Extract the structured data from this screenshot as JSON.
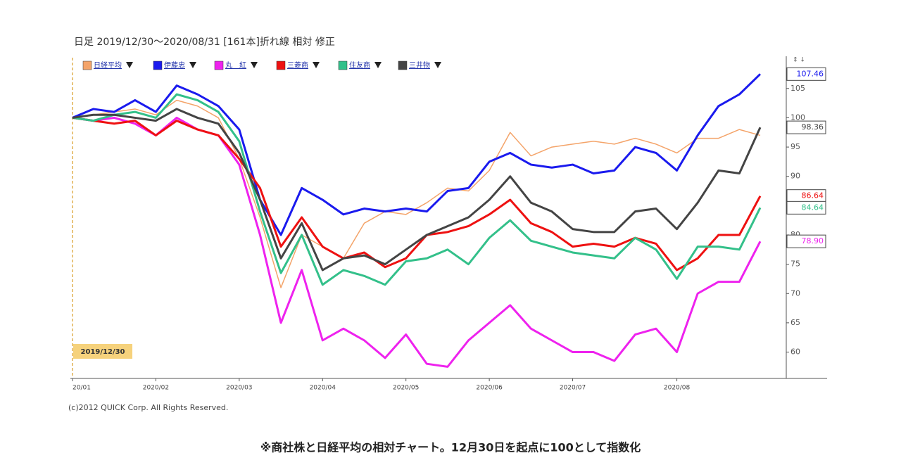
{
  "chart_data": {
    "type": "line",
    "title": "日足 2019/12/30～2020/08/31 [161本]折れ線 相対 修正",
    "start_label": "2019/12/30",
    "copyright": "(c)2012 QUICK Corp. All Rights Reserved.",
    "caption": "※商社株と日経平均の相対チャート。12月30日を起点に100として指数化",
    "categories": [
      "20/01",
      null,
      null,
      null,
      "2020/02",
      null,
      null,
      null,
      "2020/03",
      null,
      null,
      null,
      "2020/04",
      null,
      null,
      null,
      "2020/05",
      null,
      null,
      null,
      "2020/06",
      null,
      null,
      null,
      "2020/07",
      null,
      null,
      null,
      null,
      "2020/08",
      null,
      null,
      null,
      null
    ],
    "ylim": [
      55.5,
      110.5
    ],
    "yticks": [
      60,
      65,
      70,
      75,
      80,
      85,
      90,
      95,
      100,
      105
    ],
    "series": [
      {
        "name": "日経平均",
        "color": "#f4a46a",
        "values": [
          100,
          100.5,
          101,
          101.5,
          100.5,
          103,
          102,
          100,
          93,
          83,
          71,
          80,
          78,
          76,
          82,
          84,
          83.5,
          85.5,
          88,
          87.5,
          91,
          97.5,
          93.5,
          95,
          95.5,
          96,
          95.5,
          96.5,
          95.5,
          94,
          96.5,
          96.5,
          98,
          97
        ]
      },
      {
        "name": "伊藤忠",
        "color": "#1a1aee",
        "last_label": "107.46",
        "values": [
          100,
          101.5,
          101,
          103,
          101,
          105.5,
          104,
          102,
          98,
          86,
          80,
          88,
          86,
          83.5,
          84.5,
          84,
          84.5,
          84,
          87.5,
          88,
          92.5,
          94,
          92,
          91.5,
          92,
          90.5,
          91,
          95,
          94,
          91,
          97,
          102,
          104,
          107.46
        ]
      },
      {
        "name": "丸　紅",
        "color": "#ee22ee",
        "last_label": "78.90",
        "values": [
          100,
          99.5,
          100,
          99,
          97,
          100,
          98,
          97,
          92,
          80,
          65,
          74,
          62,
          64,
          62,
          59,
          63,
          58,
          57.5,
          62,
          65,
          68,
          64,
          62,
          60,
          60,
          58.5,
          63,
          64,
          60,
          70,
          72,
          72,
          78.9
        ]
      },
      {
        "name": "三菱商",
        "color": "#ee1111",
        "last_label": "86.64",
        "values": [
          100,
          99.5,
          99,
          99.5,
          97,
          99.5,
          98,
          97,
          93,
          88,
          78,
          83,
          78,
          76,
          77,
          74.5,
          76,
          80,
          80.5,
          81.5,
          83.5,
          86,
          82,
          80.5,
          78,
          78.5,
          78,
          79.5,
          78.5,
          74,
          76,
          80,
          80,
          86.64
        ]
      },
      {
        "name": "住友商",
        "color": "#33c08a",
        "last_label": "84.64",
        "values": [
          100,
          99.5,
          100.5,
          101,
          100,
          104,
          103,
          101,
          96,
          84,
          73.5,
          80,
          71.5,
          74,
          73,
          71.5,
          75.5,
          76,
          77.5,
          75,
          79.5,
          82.5,
          79,
          78,
          77,
          76.5,
          76,
          79.5,
          77.5,
          72.5,
          78,
          78,
          77.5,
          84.64
        ]
      },
      {
        "name": "三井物",
        "color": "#444444",
        "last_label": "98.36",
        "values": [
          100,
          100.5,
          100.5,
          100,
          99.5,
          101.5,
          100,
          99,
          94,
          86,
          76,
          82,
          74,
          76,
          76.5,
          75,
          77.5,
          80,
          81.5,
          83,
          86,
          90,
          85.5,
          84,
          81,
          80.5,
          80.5,
          84,
          84.5,
          81,
          85.5,
          91,
          90.5,
          98.36
        ]
      }
    ]
  }
}
